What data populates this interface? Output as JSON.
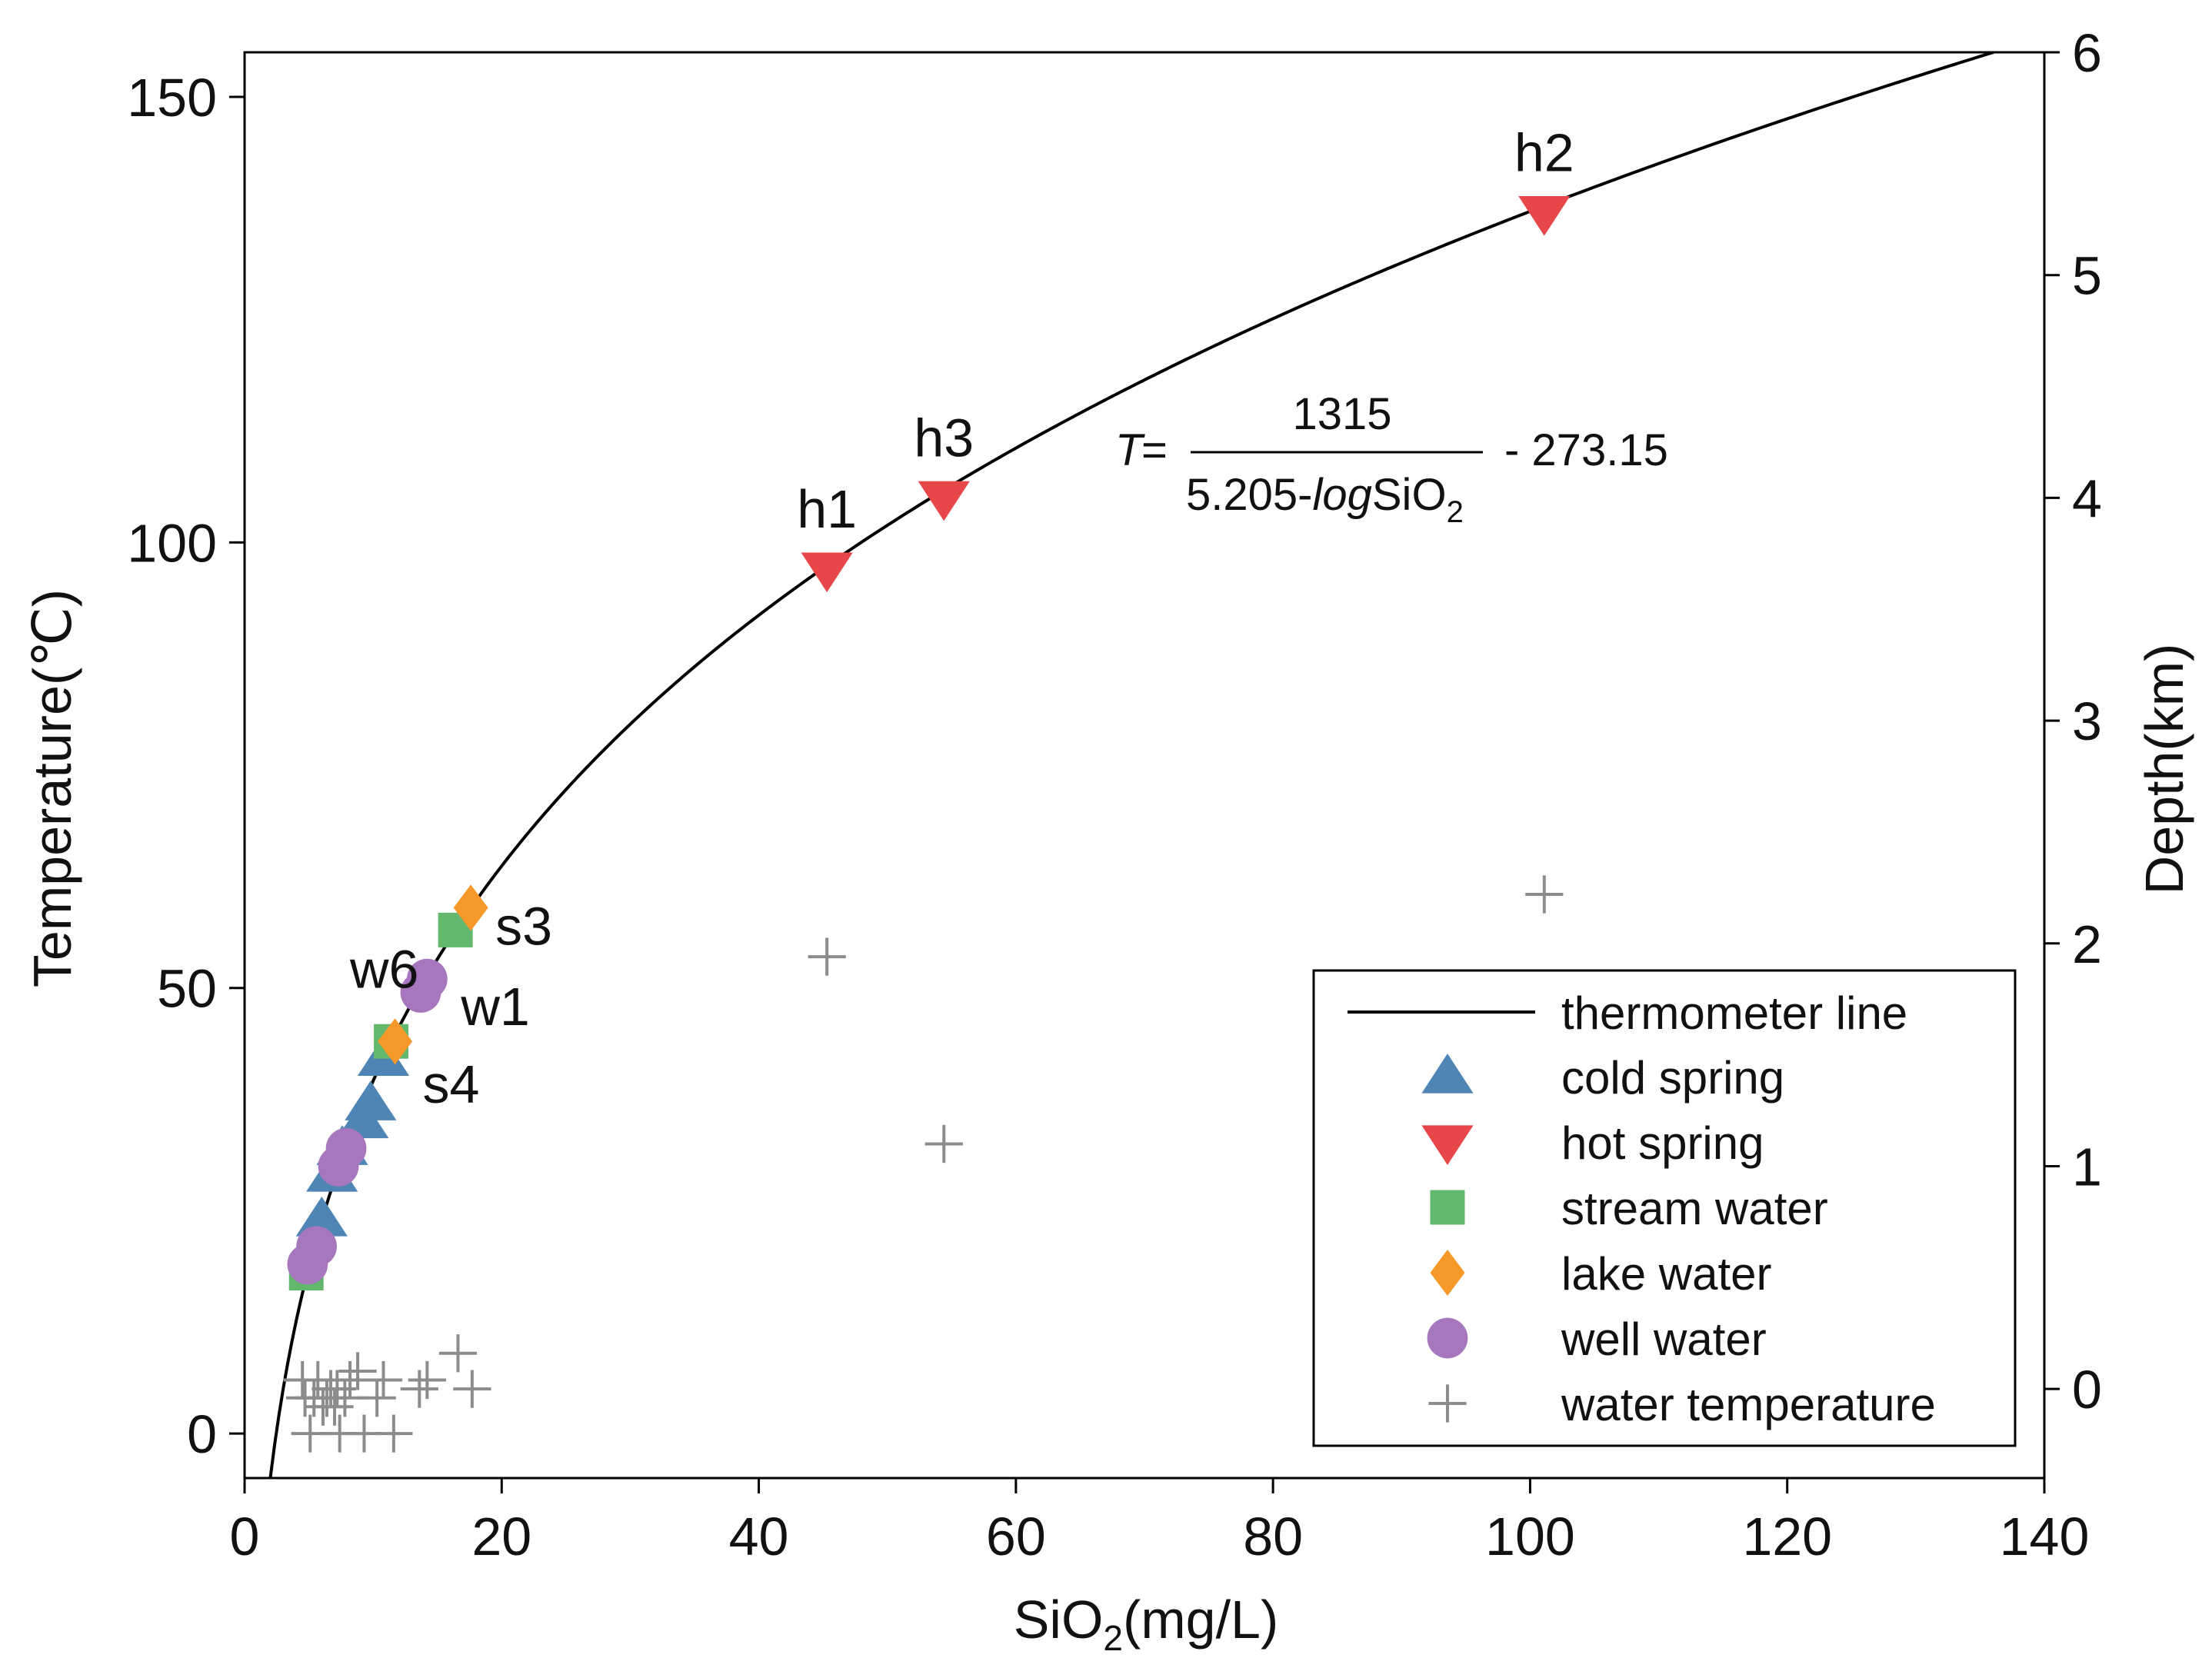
{
  "chart_data": {
    "type": "scatter",
    "title": "",
    "xlabel": "SiO2(mg/L)",
    "xlabel_main": "SiO",
    "xlabel_sub": "2",
    "xlabel_tail": "(mg/L)",
    "ylabel": "Temperature(℃)",
    "y2label": "Depth(km)",
    "xlim": [
      0,
      140
    ],
    "ylim": [
      -5,
      155
    ],
    "y2lim": [
      -0.4,
      6
    ],
    "xticks": [
      0,
      20,
      40,
      60,
      80,
      100,
      120,
      140
    ],
    "yticks": [
      0,
      50,
      100,
      150
    ],
    "y2ticks": [
      0,
      1,
      2,
      3,
      4,
      5,
      6
    ],
    "grid": false,
    "legend_position": "bottom-right",
    "formula": {
      "lhs": "T",
      "eq": "=",
      "numerator": "1315",
      "denominator_prefix": "5.205-",
      "denominator_log": "log",
      "denominator_sio": "SiO",
      "denominator_sub": "2",
      "tail": "- 273.15"
    },
    "thermometer_line": {
      "name": "thermometer line",
      "equation": "T = 1315/(5.205 - log10(SiO2)) - 273.15",
      "x_range": [
        2.0,
        137
      ]
    },
    "series": [
      {
        "name": "cold spring",
        "marker": "triangle-up",
        "color": "#4f85b4",
        "points": [
          [
            6.0,
            24
          ],
          [
            6.8,
            29
          ],
          [
            7.6,
            32
          ],
          [
            9.2,
            35
          ],
          [
            9.8,
            37
          ],
          [
            10.8,
            42
          ]
        ]
      },
      {
        "name": "hot spring",
        "marker": "triangle-down",
        "color": "#e8474a",
        "points": [
          [
            45.3,
            97
          ],
          [
            54.4,
            105
          ],
          [
            101.1,
            137
          ]
        ]
      },
      {
        "name": "stream water",
        "marker": "square",
        "color": "#64b86e",
        "points": [
          [
            4.8,
            18
          ],
          [
            11.4,
            44
          ],
          [
            16.4,
            56.5
          ]
        ]
      },
      {
        "name": "lake water",
        "marker": "diamond",
        "color": "#f7982a",
        "points": [
          [
            11.7,
            44
          ],
          [
            17.6,
            59
          ]
        ]
      },
      {
        "name": "well water",
        "marker": "circle",
        "color": "#a777be",
        "points": [
          [
            4.9,
            19
          ],
          [
            5.6,
            21
          ],
          [
            7.3,
            30
          ],
          [
            7.9,
            32
          ],
          [
            13.7,
            49.5
          ],
          [
            14.2,
            51
          ]
        ]
      },
      {
        "name": "water temperature",
        "marker": "plus",
        "color": "#8c8c8c",
        "points": [
          [
            4.5,
            6
          ],
          [
            4.7,
            4
          ],
          [
            5.1,
            0
          ],
          [
            5.4,
            4
          ],
          [
            5.7,
            6
          ],
          [
            6.1,
            3
          ],
          [
            6.4,
            4
          ],
          [
            6.7,
            5
          ],
          [
            7.0,
            3
          ],
          [
            7.2,
            5
          ],
          [
            7.4,
            0
          ],
          [
            7.8,
            4
          ],
          [
            8.2,
            6
          ],
          [
            8.8,
            7
          ],
          [
            9.3,
            0
          ],
          [
            10.3,
            4
          ],
          [
            10.8,
            6
          ],
          [
            11.6,
            0
          ],
          [
            13.6,
            5
          ],
          [
            14.2,
            6
          ],
          [
            16.6,
            9
          ],
          [
            17.7,
            5
          ],
          [
            45.3,
            53.5
          ],
          [
            54.4,
            32.5
          ],
          [
            101.1,
            60.5
          ]
        ]
      }
    ],
    "point_labels": [
      {
        "text": "h1",
        "x": 45.3,
        "y": 97
      },
      {
        "text": "h3",
        "x": 54.4,
        "y": 105
      },
      {
        "text": "h2",
        "x": 101.1,
        "y": 137
      },
      {
        "text": "s3",
        "x": 17.6,
        "y": 59
      },
      {
        "text": "w6",
        "x": 13.7,
        "y": 49.5
      },
      {
        "text": "w1",
        "x": 14.2,
        "y": 51
      },
      {
        "text": "s4",
        "x": 11.7,
        "y": 44
      }
    ]
  }
}
